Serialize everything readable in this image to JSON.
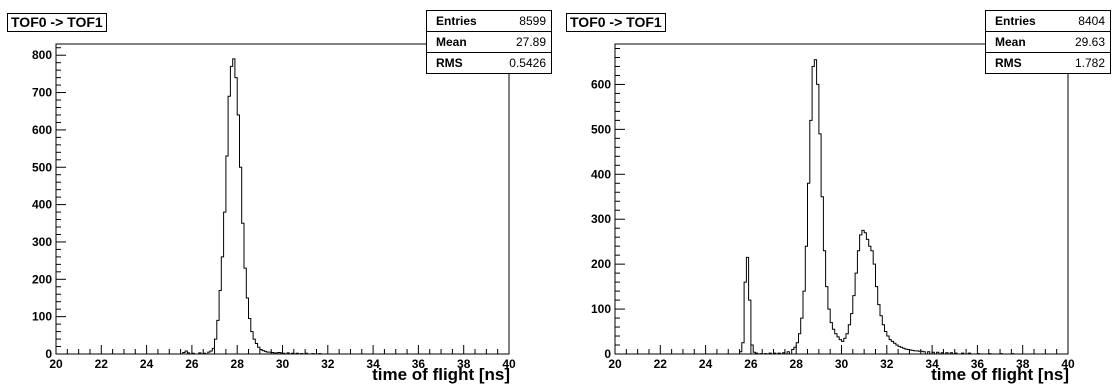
{
  "chart_data": [
    {
      "type": "histogram",
      "title": "TOF0 -> TOF1",
      "xlabel": "time of flight [ns]",
      "ylabel": "",
      "xlim": [
        20,
        40
      ],
      "ylim": [
        0,
        830
      ],
      "yticks": [
        0,
        100,
        200,
        300,
        400,
        500,
        600,
        700,
        800
      ],
      "xticks": [
        20,
        22,
        24,
        26,
        28,
        30,
        32,
        34,
        36,
        38,
        40
      ],
      "grid": false,
      "stats": [
        {
          "label": "Entries",
          "value": "8599"
        },
        {
          "label": "Mean",
          "value": "27.89"
        },
        {
          "label": "RMS",
          "value": "0.5426"
        }
      ],
      "bins": [
        [
          25.6,
          4
        ],
        [
          25.7,
          8
        ],
        [
          25.8,
          3
        ],
        [
          26.0,
          2
        ],
        [
          26.3,
          3
        ],
        [
          26.5,
          2
        ],
        [
          26.7,
          5
        ],
        [
          26.8,
          8
        ],
        [
          26.9,
          15
        ],
        [
          27.0,
          40
        ],
        [
          27.1,
          90
        ],
        [
          27.2,
          170
        ],
        [
          27.3,
          260
        ],
        [
          27.4,
          380
        ],
        [
          27.5,
          530
        ],
        [
          27.6,
          690
        ],
        [
          27.7,
          770
        ],
        [
          27.8,
          790
        ],
        [
          27.9,
          740
        ],
        [
          28.0,
          640
        ],
        [
          28.1,
          500
        ],
        [
          28.2,
          350
        ],
        [
          28.3,
          230
        ],
        [
          28.4,
          150
        ],
        [
          28.5,
          95
        ],
        [
          28.6,
          60
        ],
        [
          28.7,
          40
        ],
        [
          28.8,
          28
        ],
        [
          28.9,
          18
        ],
        [
          29.0,
          12
        ],
        [
          29.1,
          9
        ],
        [
          29.2,
          7
        ],
        [
          29.3,
          5
        ],
        [
          29.4,
          5
        ],
        [
          29.5,
          4
        ],
        [
          29.6,
          3
        ],
        [
          29.7,
          3
        ],
        [
          29.8,
          4
        ],
        [
          29.9,
          3
        ],
        [
          30.0,
          2
        ],
        [
          30.2,
          3
        ],
        [
          30.4,
          2
        ],
        [
          30.6,
          2
        ],
        [
          30.8,
          1
        ],
        [
          31.0,
          2
        ],
        [
          31.3,
          1
        ],
        [
          31.6,
          1
        ]
      ]
    },
    {
      "type": "histogram",
      "title": "TOF0 -> TOF1",
      "xlabel": "time of flight [ns]",
      "ylabel": "",
      "xlim": [
        20,
        40
      ],
      "ylim": [
        0,
        690
      ],
      "yticks": [
        0,
        100,
        200,
        300,
        400,
        500,
        600
      ],
      "xticks": [
        20,
        22,
        24,
        26,
        28,
        30,
        32,
        34,
        36,
        38,
        40
      ],
      "grid": false,
      "stats": [
        {
          "label": "Entries",
          "value": "8404"
        },
        {
          "label": "Mean",
          "value": "29.63"
        },
        {
          "label": "RMS",
          "value": "1.782"
        }
      ],
      "bins": [
        [
          25.5,
          5
        ],
        [
          25.6,
          25
        ],
        [
          25.7,
          160
        ],
        [
          25.8,
          215
        ],
        [
          25.9,
          120
        ],
        [
          26.0,
          20
        ],
        [
          26.1,
          4
        ],
        [
          26.2,
          2
        ],
        [
          26.4,
          1
        ],
        [
          26.6,
          1
        ],
        [
          26.8,
          2
        ],
        [
          27.0,
          2
        ],
        [
          27.2,
          2
        ],
        [
          27.4,
          3
        ],
        [
          27.6,
          5
        ],
        [
          27.8,
          10
        ],
        [
          27.9,
          15
        ],
        [
          28.0,
          25
        ],
        [
          28.1,
          45
        ],
        [
          28.2,
          80
        ],
        [
          28.3,
          140
        ],
        [
          28.4,
          240
        ],
        [
          28.5,
          380
        ],
        [
          28.6,
          520
        ],
        [
          28.7,
          640
        ],
        [
          28.8,
          655
        ],
        [
          28.9,
          600
        ],
        [
          29.0,
          490
        ],
        [
          29.1,
          350
        ],
        [
          29.2,
          230
        ],
        [
          29.3,
          150
        ],
        [
          29.4,
          100
        ],
        [
          29.5,
          70
        ],
        [
          29.6,
          55
        ],
        [
          29.7,
          45
        ],
        [
          29.8,
          38
        ],
        [
          29.9,
          32
        ],
        [
          30.0,
          28
        ],
        [
          30.1,
          35
        ],
        [
          30.2,
          45
        ],
        [
          30.3,
          65
        ],
        [
          30.4,
          90
        ],
        [
          30.5,
          130
        ],
        [
          30.6,
          180
        ],
        [
          30.7,
          230
        ],
        [
          30.8,
          265
        ],
        [
          30.9,
          275
        ],
        [
          31.0,
          270
        ],
        [
          31.1,
          255
        ],
        [
          31.2,
          240
        ],
        [
          31.3,
          230
        ],
        [
          31.4,
          200
        ],
        [
          31.5,
          150
        ],
        [
          31.6,
          110
        ],
        [
          31.7,
          85
        ],
        [
          31.8,
          65
        ],
        [
          31.9,
          50
        ],
        [
          32.0,
          40
        ],
        [
          32.1,
          32
        ],
        [
          32.2,
          28
        ],
        [
          32.3,
          24
        ],
        [
          32.4,
          20
        ],
        [
          32.5,
          17
        ],
        [
          32.6,
          15
        ],
        [
          32.7,
          13
        ],
        [
          32.8,
          11
        ],
        [
          32.9,
          10
        ],
        [
          33.0,
          9
        ],
        [
          33.1,
          8
        ],
        [
          33.2,
          7
        ],
        [
          33.3,
          7
        ],
        [
          33.4,
          6
        ],
        [
          33.5,
          6
        ],
        [
          33.6,
          5
        ],
        [
          33.8,
          5
        ],
        [
          34.0,
          4
        ],
        [
          34.2,
          4
        ],
        [
          34.4,
          3
        ],
        [
          34.6,
          3
        ],
        [
          34.8,
          3
        ],
        [
          35.0,
          2
        ],
        [
          35.3,
          2
        ],
        [
          35.6,
          2
        ],
        [
          36.0,
          1
        ],
        [
          36.5,
          1
        ],
        [
          37.0,
          1
        ],
        [
          37.5,
          1
        ]
      ]
    }
  ]
}
